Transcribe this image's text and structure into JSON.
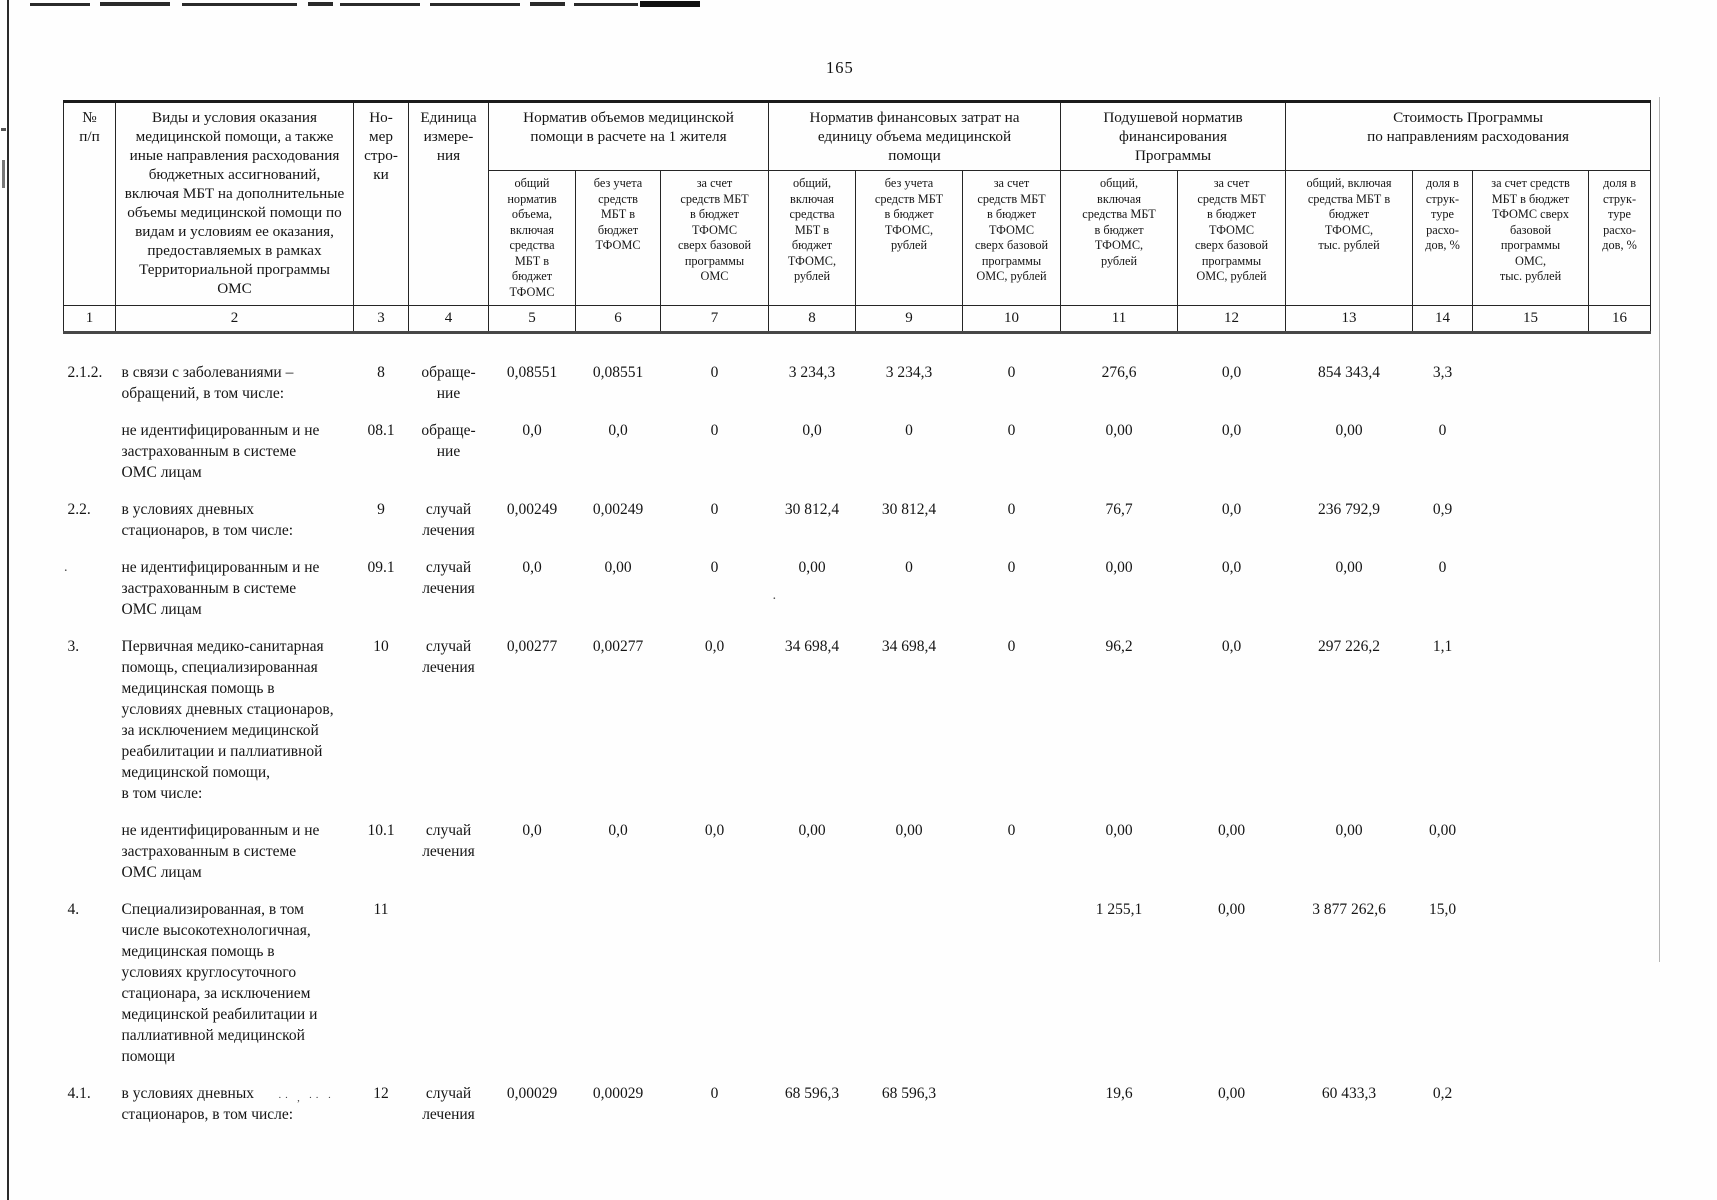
{
  "page": {
    "number": "165"
  },
  "table": {
    "header": {
      "col_num": "№\nп/п",
      "col_kinds": "Виды и условия оказания\nмедицинской помощи, а также\nиные направления расходования\nбюджетных ассигнований,\nвключая МБТ на дополнительные\nобъемы медицинской помощи по\nвидам и условиям ее оказания,\nпредоставляемых в рамках\nТерриториальной программы\nОМС",
      "col_line": "Но-\nмер\nстро-\nки",
      "col_unit": "Единица\nизмере-\nния",
      "group_volume": "Норматив объемов медицинской\nпомощи в расчете на 1 жителя",
      "group_finance": "Норматив финансовых затрат на\nединицу объема медицинской\nпомощи",
      "group_percapita": "Подушевой норматив\nфинансирования\nПрограммы",
      "group_cost": "Стоимость Программы\nпо направлениям расходования",
      "sub": [
        "общий\nнорматив\nобъема,\nвключая\nсредства\nМБТ в\nбюджет\nТФОМС",
        "без учета\nсредств\nМБТ в\nбюджет\nТФОМС",
        "за счет\nсредств МБТ\nв бюджет\nТФОМС\nсверх базовой\nпрограммы\nОМС",
        "общий,\nвключая\nсредства\nМБТ в\nбюджет\nТФОМС,\nрублей",
        "без учета\nсредств МБТ\nв бюджет\nТФОМС,\nрублей",
        "за счет\nсредств МБТ\nв бюджет\nТФОМС\nсверх базовой\nпрограммы\nОМС, рублей",
        "общий,\nвключая\nсредства МБТ\nв бюджет\nТФОМС,\nрублей",
        "за счет\nсредств МБТ\nв бюджет\nТФОМС\nсверх базовой\nпрограммы\nОМС, рублей",
        "общий, включая\nсредства МБТ в\nбюджет\nТФОМС,\nтыс. рублей",
        "доля в\nструк-\nтуре\nрасхо-\nдов, %",
        "за счет средств\nМБТ в бюджет\nТФОМС сверх\nбазовой\nпрограммы\nОМС,\nтыс. рублей",
        "доля в\nструк-\nтуре\nрасхо-\nдов, %"
      ],
      "nums": [
        "1",
        "2",
        "3",
        "4",
        "5",
        "6",
        "7",
        "8",
        "9",
        "10",
        "11",
        "12",
        "13",
        "14",
        "15",
        "16"
      ]
    },
    "rows": [
      {
        "cells": [
          "2.1.2.",
          "в связи с заболеваниями –\nобращений, в том числе:",
          "8",
          "обраще-\nние",
          "0,08551",
          "0,08551",
          "0",
          "3 234,3",
          "3 234,3",
          "0",
          "276,6",
          "0,0",
          "854 343,4",
          "3,3",
          "",
          ""
        ]
      },
      {
        "cells": [
          "",
          "не идентифицированным и не\nзастрахованным в системе\nОМС лицам",
          "08.1",
          "обраще-\nние",
          "0,0",
          "0,0",
          "0",
          "0,0",
          "0",
          "0",
          "0,00",
          "0,0",
          "0,00",
          "0",
          "",
          ""
        ]
      },
      {
        "cells": [
          "2.2.",
          "в условиях дневных\nстационаров, в том числе:",
          "9",
          "случай\nлечения",
          "0,00249",
          "0,00249",
          "0",
          "30 812,4",
          "30 812,4",
          "0",
          "76,7",
          "0,0",
          "236 792,9",
          "0,9",
          "",
          ""
        ]
      },
      {
        "cells": [
          "",
          "не идентифицированным и не\nзастрахованным в системе\nОМС лицам",
          "09.1",
          "случай\nлечения",
          "0,0",
          "0,00",
          "0",
          "0,00",
          "0",
          "0",
          "0,00",
          "0,0",
          "0,00",
          "0",
          "",
          ""
        ]
      },
      {
        "cells": [
          "3.",
          "Первичная медико-санитарная\nпомощь, специализированная\nмедицинская помощь в\nусловиях дневных стационаров,\nза исключением медицинской\nреабилитации и паллиативной\nмедицинской помощи,\nв том числе:",
          "10",
          "случай\nлечения",
          "0,00277",
          "0,00277",
          "0,0",
          "34 698,4",
          "34 698,4",
          "0",
          "96,2",
          "0,0",
          "297 226,2",
          "1,1",
          "",
          ""
        ]
      },
      {
        "cells": [
          "",
          "не идентифицированным и не\nзастрахованным в системе\nОМС лицам",
          "10.1",
          "случай\nлечения",
          "0,0",
          "0,0",
          "0,0",
          "0,00",
          "0,00",
          "0",
          "0,00",
          "0,00",
          "0,00",
          "0,00",
          "",
          ""
        ]
      },
      {
        "cells": [
          "4.",
          "Специализированная, в том\nчисле высокотехнологичная,\nмедицинская помощь в\nусловиях круглосуточного\nстационара, за исключением\nмедицинской реабилитации и\nпаллиативной медицинской\nпомощи",
          "11",
          "",
          "",
          "",
          "",
          "",
          "",
          "",
          "1 255,1",
          "0,00",
          "3 877 262,6",
          "15,0",
          "",
          ""
        ]
      },
      {
        "cells": [
          "4.1.",
          "в условиях дневных\nстационаров, в том числе:",
          "12",
          "случай\nлечения",
          "0,00029",
          "0,00029",
          "0",
          "68 596,3",
          "68 596,3",
          "",
          "19,6",
          "0,00",
          "60 433,3",
          "0,2",
          "",
          ""
        ]
      }
    ]
  }
}
